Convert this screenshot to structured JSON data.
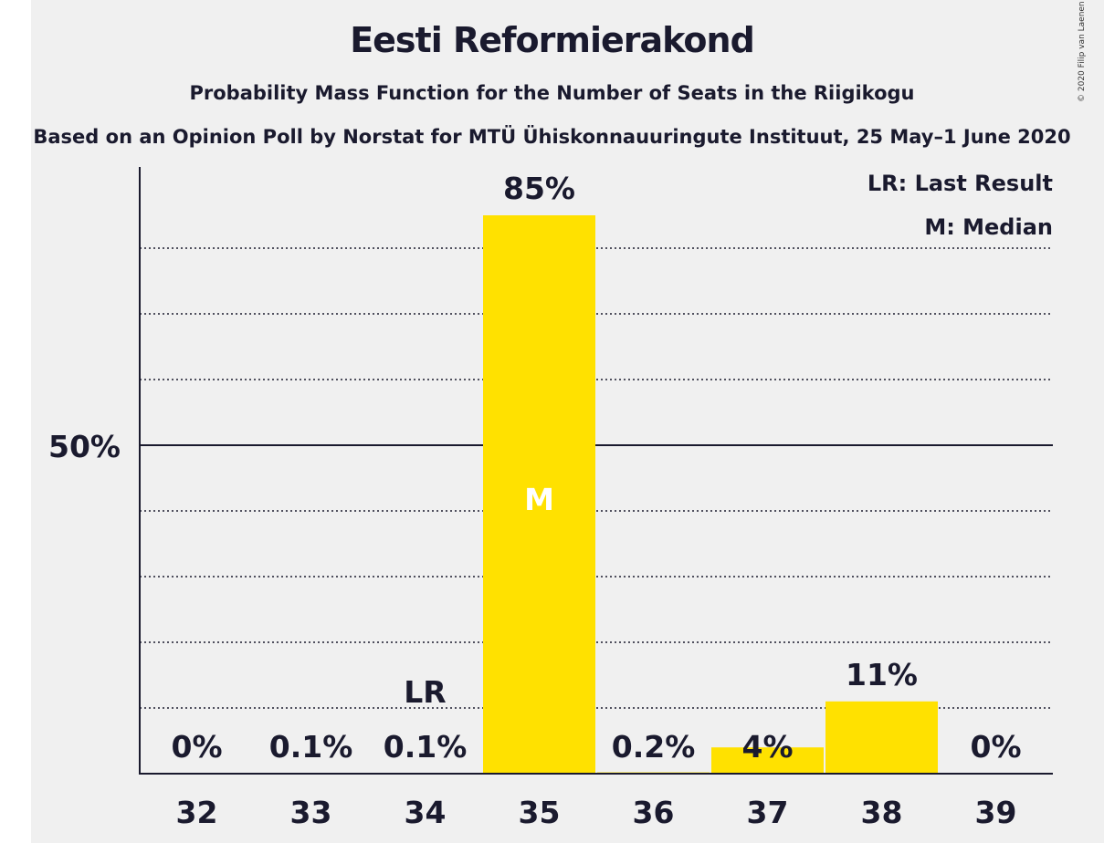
{
  "title": "Eesti Reformierakond",
  "subtitle": "Probability Mass Function for the Number of Seats in the Riigikogu",
  "poll_line": "Based on an Opinion Poll by Norstat for MTÜ Ühiskonnauuringute Instituut, 25 May–1 June 2020",
  "copyright": "© 2020 Filip van Laenen",
  "legend": {
    "last_result": "LR: Last Result",
    "median": "M: Median"
  },
  "colors": {
    "bar": "#ffe100",
    "text": "#1a1a2e",
    "background": "#f0f0f0"
  },
  "chart_data": {
    "type": "bar",
    "title": "Eesti Reformierakond",
    "xlabel": "",
    "ylabel": "",
    "categories": [
      "32",
      "33",
      "34",
      "35",
      "36",
      "37",
      "38",
      "39"
    ],
    "values": [
      0,
      0.1,
      0.1,
      85,
      0.2,
      4,
      11,
      0
    ],
    "value_labels": [
      "0%",
      "0.1%",
      "0.1%",
      "85%",
      "0.2%",
      "4%",
      "11%",
      "0%"
    ],
    "ylim": [
      0,
      92.5
    ],
    "y_ticks": [
      {
        "value": 50,
        "label": "50%"
      }
    ],
    "gridlines": [
      10,
      20,
      30,
      40,
      60,
      70,
      80
    ],
    "last_result": {
      "category": "34",
      "label": "LR"
    },
    "median": {
      "category": "35",
      "label": "M"
    }
  }
}
